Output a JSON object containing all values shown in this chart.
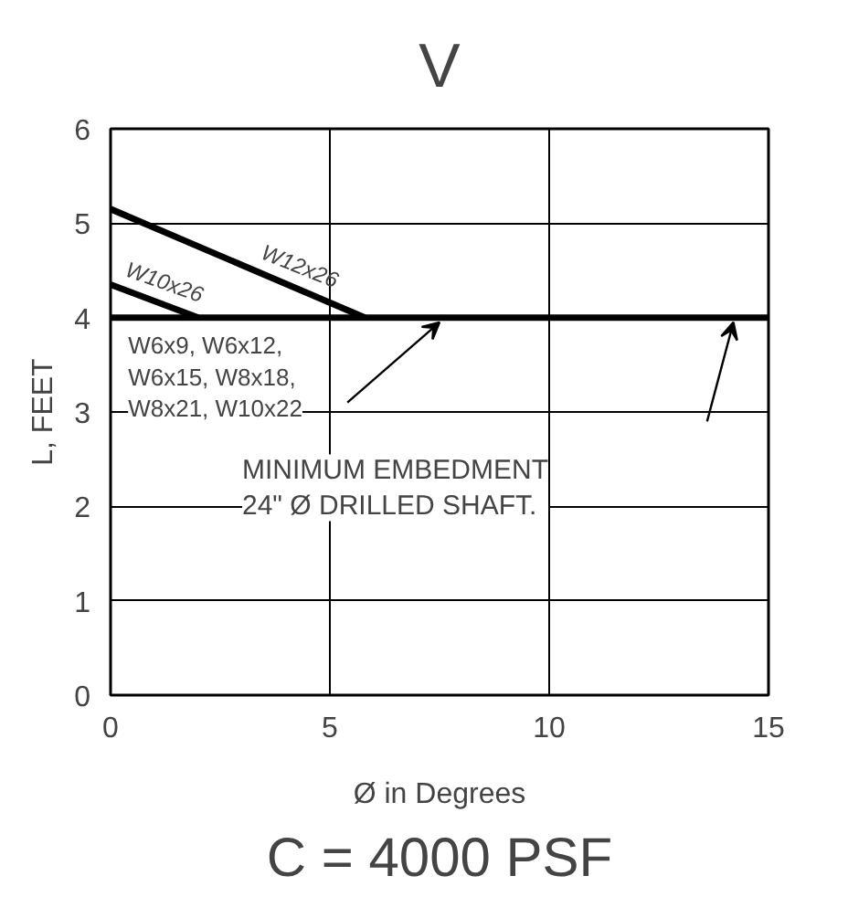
{
  "chart_data": {
    "type": "line",
    "title": "V",
    "subtitle": "C = 4000 PSF",
    "xlabel": "Ø in Degrees",
    "ylabel": "L, FEET",
    "xlim": [
      0,
      15
    ],
    "ylim": [
      0,
      6
    ],
    "xticks": [
      0,
      5,
      10,
      15
    ],
    "yticks": [
      0,
      1,
      2,
      3,
      4,
      5,
      6
    ],
    "grid": true,
    "marker": "none",
    "line_style": "solid",
    "series": [
      {
        "name": "W12x26",
        "color": "#000000",
        "x": [
          0,
          5.8
        ],
        "values": [
          5.15,
          4
        ]
      },
      {
        "name": "W10x26",
        "color": "#000000",
        "x": [
          0,
          2.0
        ],
        "values": [
          4.35,
          4
        ]
      },
      {
        "color": "#000000",
        "x": [
          0,
          15
        ],
        "values": [
          4,
          4
        ]
      }
    ],
    "annotations": [
      "W6x9, W6x12,\nW6x15, W8x18,\nW8x21, W10x22",
      "MINIMUM EMBEDMENT\n24\" Ø DRILLED SHAFT."
    ]
  }
}
